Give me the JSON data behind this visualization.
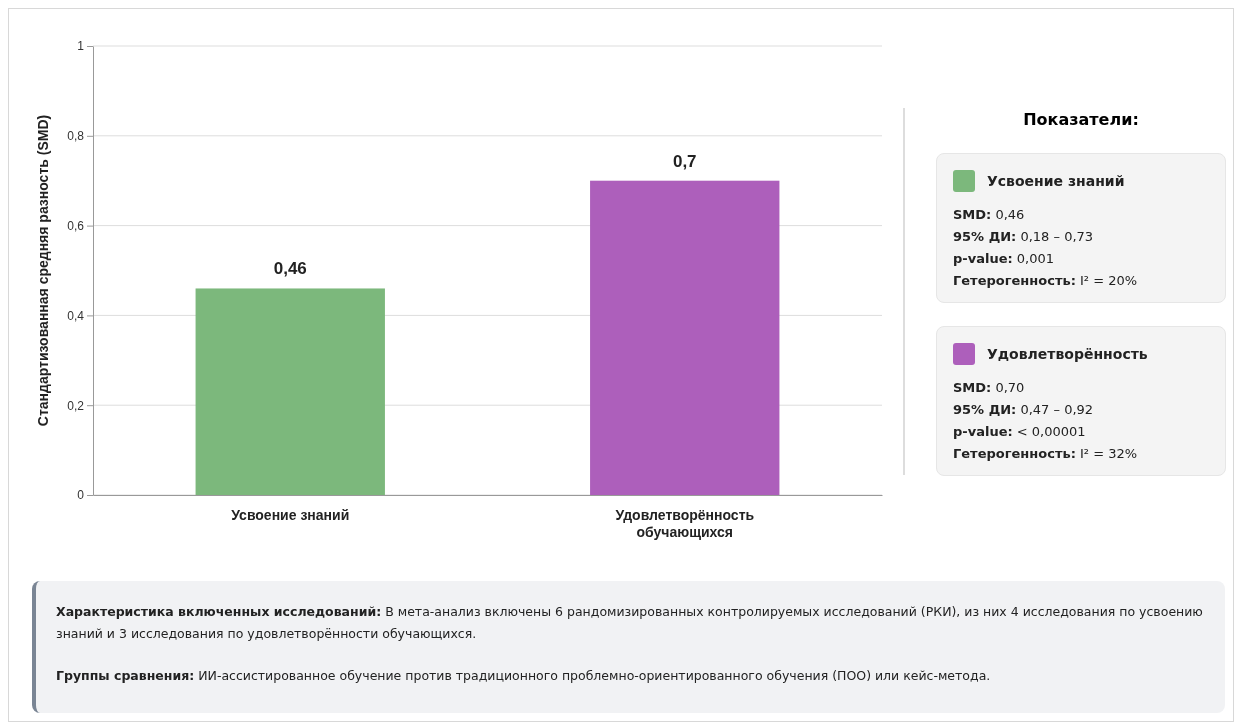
{
  "chart_data": {
    "type": "bar",
    "ylabel": "Стандартизованная средняя разность (SMD)",
    "categories": [
      "Усвоение знаний",
      "Удовлетворённость обучающихся"
    ],
    "series": [
      {
        "name": "Усвоение знаний",
        "color": "#7cb87c",
        "values": [
          0.46,
          null
        ],
        "value_labels": [
          "0,46",
          null
        ]
      },
      {
        "name": "Удовлетворённость",
        "color": "#ad5fbb",
        "values": [
          null,
          0.7
        ],
        "value_labels": [
          null,
          "0,7"
        ]
      }
    ],
    "ylim": [
      0,
      1
    ],
    "yticks": [
      0,
      {
        "value": 0.2,
        "label": "0,2"
      },
      {
        "value": 0.4,
        "label": "0,4"
      },
      {
        "value": 0.6,
        "label": "0,6"
      },
      {
        "value": 0.8,
        "label": "0,8"
      },
      1
    ],
    "grid": "y",
    "legend": "right",
    "legend_title": "Показатели:",
    "annotations": [
      "SMD: 0,46",
      "95% ДИ: 0,18 – 0,73",
      "p-value: 0,001",
      "Гетерогенность: I² = 20%",
      "SMD: 0,70",
      "95% ДИ: 0,47 – 0,92",
      "p-value: < 0,00001",
      "Гетерогенность: I² = 32%",
      "Характеристика включенных исследований: В мета-анализ включены 6 рандомизированных контролируемых исследований (РКИ), из них 4 исследования по усвоению знаний и 3 исследования по удовлетворённости обучающихся.",
      "Группы сравнения: ИИ-ассистированное обучение против традиционного проблемно-ориентированного обучения (ПОО) или кейс-метода."
    ]
  }
}
